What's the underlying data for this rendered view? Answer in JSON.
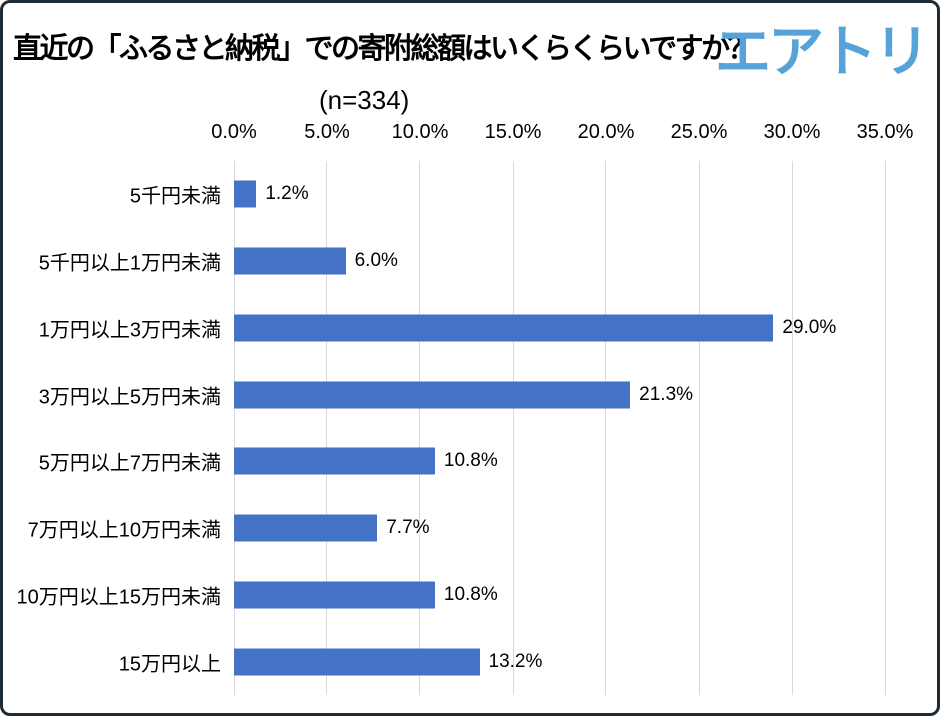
{
  "header": {
    "title": "直近の「ふるさと納税」での寄附総額はいくらくらいですか？",
    "logo_text": "エアトリ",
    "subtitle": "(n=334)"
  },
  "colors": {
    "bar": "#4472C4",
    "logo": "#55A3D8",
    "gridline": "#D9D9D9",
    "frame_border": "#1D2B35",
    "text": "#000000",
    "background": "#FFFFFF"
  },
  "chart_data": {
    "type": "bar",
    "orientation": "horizontal",
    "title": "直近の「ふるさと納税」での寄附総額はいくらくらいですか？",
    "subtitle": "(n=334)",
    "sample_size": 334,
    "categories": [
      "5千円未満",
      "5千円以上1万円未満",
      "1万円以上3万円未満",
      "3万円以上5万円未満",
      "5万円以上7万円未満",
      "7万円以上10万円未満",
      "10万円以上15万円未満",
      "15万円以上"
    ],
    "values": [
      1.2,
      6.0,
      29.0,
      21.3,
      10.8,
      7.7,
      10.8,
      13.2
    ],
    "data_labels": [
      "1.2%",
      "6.0%",
      "29.0%",
      "21.3%",
      "10.8%",
      "7.7%",
      "10.8%",
      "13.2%"
    ],
    "x_axis": {
      "position": "top",
      "min": 0,
      "max": 35,
      "tick_step": 5,
      "ticks": [
        "0.0%",
        "5.0%",
        "10.0%",
        "15.0%",
        "20.0%",
        "25.0%",
        "30.0%",
        "35.0%"
      ]
    },
    "grid": true,
    "legend": false,
    "bar_color": "#4472C4",
    "xlabel": "",
    "ylabel": ""
  }
}
